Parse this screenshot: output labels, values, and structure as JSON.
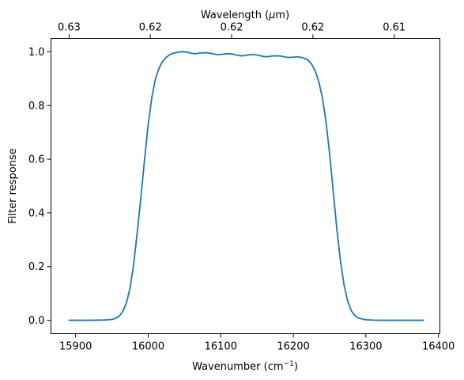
{
  "chart_data": {
    "type": "line",
    "title": "",
    "xlabel": "Wavenumber (cm",
    "xlabel_superscript": "−1",
    "xlabel_suffix": ")",
    "ylabel": "Filter response",
    "top_xlabel": "Wavelength (",
    "top_xlabel_mu": "μ",
    "top_xlabel_suffix": "m)",
    "xlim": [
      15866,
      16402
    ],
    "ylim": [
      -0.05,
      1.05
    ],
    "xticks": [
      15900,
      16000,
      16100,
      16200,
      16300,
      16400
    ],
    "xtick_labels": [
      "15900",
      "16000",
      "16100",
      "16200",
      "16300",
      "16400"
    ],
    "yticks": [
      0.0,
      0.2,
      0.4,
      0.6,
      0.8,
      1.0
    ],
    "ytick_labels": [
      "0.0",
      "0.2",
      "0.4",
      "0.6",
      "0.8",
      "1.0"
    ],
    "top_ticks": [
      15891,
      16003,
      16115,
      16227,
      16339,
      16451
    ],
    "top_tick_labels": [
      "0.63",
      "0.62",
      "0.62",
      "0.62",
      "0.61",
      "0.61"
    ],
    "grid": false,
    "line_color": "#1f77b4",
    "series": [
      {
        "x": [
          15891,
          15920,
          15940,
          15950,
          15955,
          15960,
          15965,
          15970,
          15975,
          15980,
          15985,
          15990,
          15995,
          16000,
          16005,
          16010,
          16015,
          16020,
          16025,
          16030,
          16035,
          16040,
          16045,
          16050,
          16055,
          16060,
          16065,
          16070,
          16075,
          16080,
          16085,
          16090,
          16095,
          16100,
          16105,
          16110,
          16115,
          16120,
          16125,
          16130,
          16135,
          16140,
          16145,
          16150,
          16155,
          16160,
          16165,
          16170,
          16175,
          16180,
          16185,
          16190,
          16195,
          16200,
          16205,
          16210,
          16215,
          16220,
          16225,
          16230,
          16235,
          16240,
          16245,
          16250,
          16255,
          16260,
          16265,
          16270,
          16275,
          16280,
          16285,
          16290,
          16300,
          16310,
          16320,
          16340,
          16360,
          16379
        ],
        "values": [
          0.0,
          0.0,
          0.001,
          0.003,
          0.007,
          0.015,
          0.033,
          0.065,
          0.12,
          0.21,
          0.33,
          0.46,
          0.6,
          0.73,
          0.83,
          0.9,
          0.94,
          0.965,
          0.98,
          0.99,
          0.995,
          0.998,
          1.0,
          1.0,
          0.998,
          0.994,
          0.993,
          0.995,
          0.996,
          0.997,
          0.995,
          0.992,
          0.99,
          0.99,
          0.992,
          0.993,
          0.992,
          0.989,
          0.986,
          0.985,
          0.987,
          0.989,
          0.99,
          0.988,
          0.985,
          0.982,
          0.982,
          0.984,
          0.985,
          0.985,
          0.983,
          0.98,
          0.979,
          0.98,
          0.981,
          0.98,
          0.976,
          0.97,
          0.955,
          0.93,
          0.89,
          0.83,
          0.74,
          0.62,
          0.48,
          0.34,
          0.22,
          0.13,
          0.07,
          0.035,
          0.017,
          0.008,
          0.002,
          0.0005,
          0.0,
          0.0,
          0.0,
          0.0
        ]
      }
    ]
  }
}
